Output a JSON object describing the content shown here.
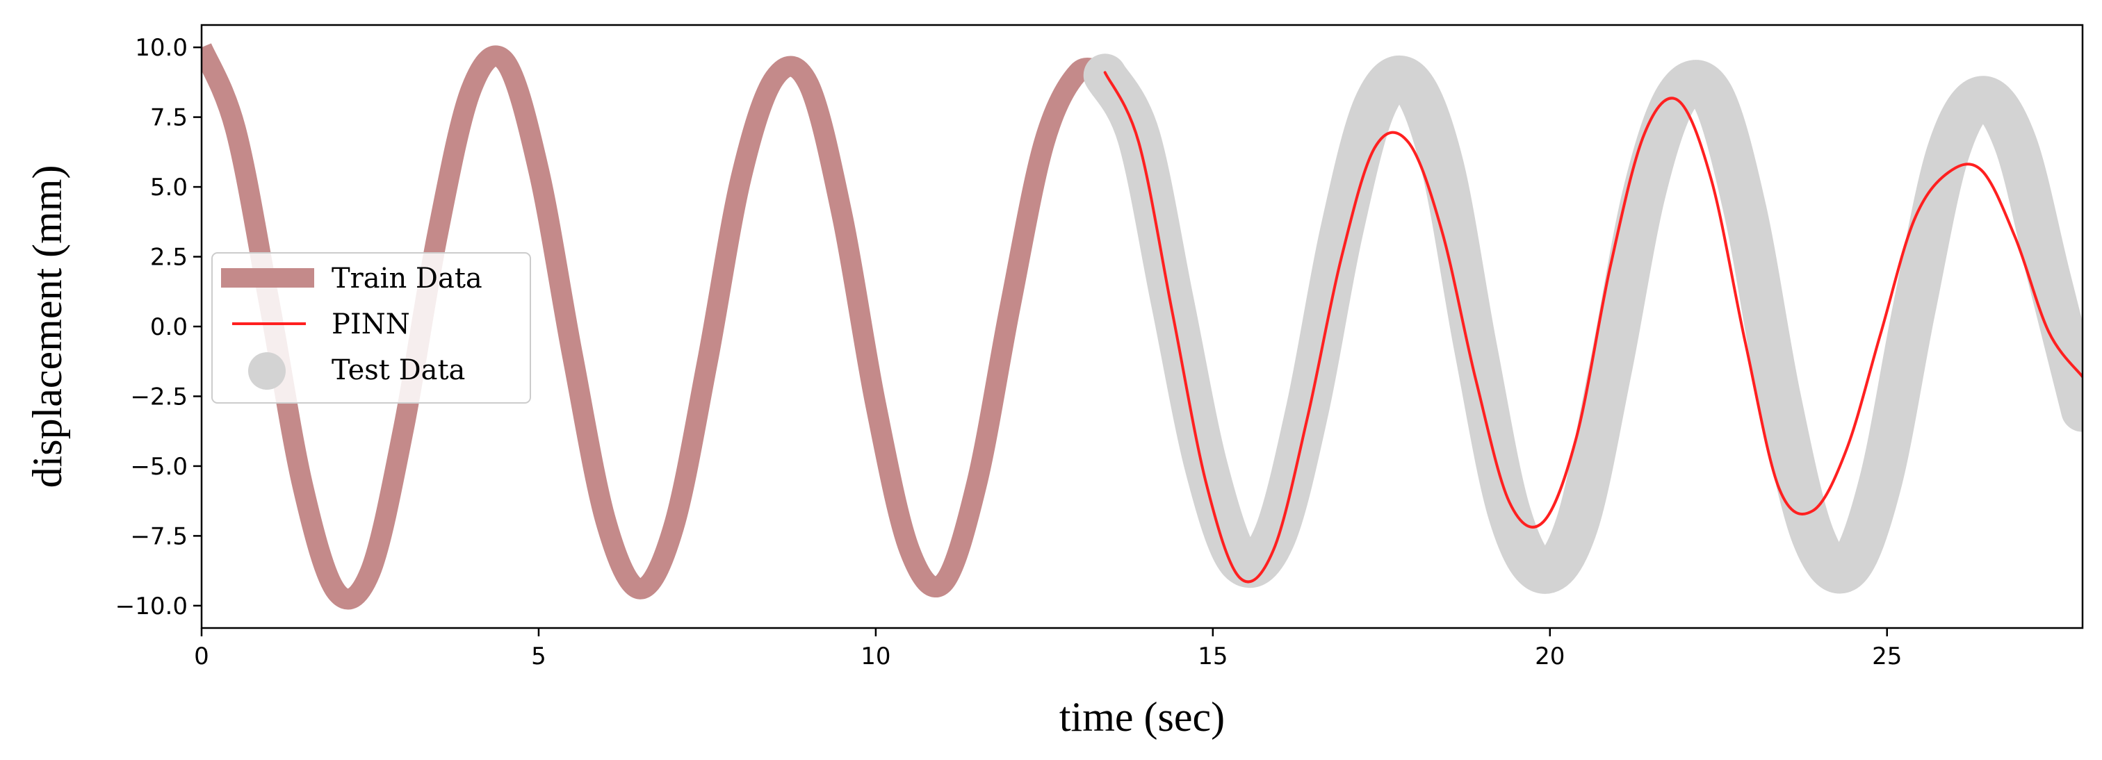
{
  "chart_data": {
    "type": "line",
    "xlabel": "time (sec)",
    "ylabel": "displacement (mm)",
    "xlim": [
      0,
      27.9
    ],
    "ylim": [
      -10.8,
      10.8
    ],
    "xticks": [
      0,
      5,
      10,
      15,
      20,
      25
    ],
    "yticks": [
      -10.0,
      -7.5,
      -5.0,
      -2.5,
      0.0,
      2.5,
      5.0,
      7.5,
      10.0
    ],
    "ytick_labels": [
      "−10.0",
      "−7.5",
      "−5.0",
      "−2.5",
      "0.0",
      "2.5",
      "5.0",
      "7.5",
      "10.0"
    ],
    "xtick_labels": [
      "0",
      "5",
      "10",
      "15",
      "20",
      "25"
    ],
    "grid": false,
    "legend_position": "center-left",
    "legend": [
      {
        "label": "Train Data",
        "color": "#c48a8a",
        "style": "thick-line"
      },
      {
        "label": "PINN",
        "color": "#ff2020",
        "style": "line"
      },
      {
        "label": "Test Data",
        "color": "#d3d3d3",
        "style": "marker"
      }
    ],
    "series": [
      {
        "name": "Train Data",
        "color": "#c48a8a",
        "x": [
          0,
          0.5,
          1.0,
          1.5,
          2.0,
          2.5,
          3.0,
          3.5,
          4.0,
          4.5,
          5.0,
          5.5,
          6.0,
          6.5,
          7.0,
          7.5,
          8.0,
          8.5,
          9.0,
          9.5,
          10.0,
          10.5,
          11.0,
          11.5,
          12.0,
          12.5,
          13.0,
          13.4
        ],
        "y": [
          10.0,
          7.1,
          0.9,
          -5.7,
          -9.5,
          -8.8,
          -3.6,
          3.3,
          8.5,
          9.5,
          5.6,
          -1.0,
          -7.0,
          -9.4,
          -7.2,
          -1.3,
          5.3,
          8.9,
          8.7,
          4.0,
          -2.8,
          -8.0,
          -9.2,
          -5.6,
          0.8,
          6.6,
          9.1,
          9.0
        ]
      },
      {
        "name": "Test Data",
        "color": "#d3d3d3",
        "x": [
          13.4,
          13.9,
          14.4,
          14.9,
          15.4,
          15.9,
          16.4,
          16.9,
          17.4,
          17.9,
          18.4,
          18.9,
          19.4,
          19.9,
          20.4,
          20.9,
          21.4,
          21.9,
          22.4,
          22.9,
          23.4,
          23.9,
          24.4,
          24.9,
          25.4,
          25.9,
          26.4,
          26.9,
          27.4,
          27.9
        ],
        "y": [
          9.0,
          6.8,
          0.9,
          -5.0,
          -8.4,
          -7.6,
          -3.0,
          3.3,
          7.9,
          8.8,
          5.8,
          -0.8,
          -6.7,
          -8.8,
          -7.1,
          -1.5,
          4.8,
          8.3,
          8.3,
          4.1,
          -2.5,
          -7.5,
          -8.7,
          -5.6,
          0.6,
          6.2,
          8.2,
          6.6,
          1.8,
          -3.0
        ]
      },
      {
        "name": "PINN",
        "color": "#ff2020",
        "x": [
          13.4,
          13.9,
          14.4,
          14.9,
          15.4,
          15.9,
          16.4,
          16.9,
          17.4,
          17.9,
          18.4,
          18.9,
          19.4,
          19.9,
          20.4,
          20.9,
          21.4,
          21.9,
          22.4,
          22.9,
          23.4,
          23.9,
          24.4,
          24.9,
          25.4,
          25.9,
          26.4,
          26.9,
          27.4,
          27.9
        ],
        "y": [
          9.1,
          6.6,
          0.5,
          -5.6,
          -9.0,
          -8.0,
          -3.3,
          2.4,
          6.4,
          6.6,
          3.4,
          -1.9,
          -6.3,
          -7.0,
          -3.9,
          2.2,
          6.9,
          8.1,
          5.2,
          -0.6,
          -5.8,
          -6.6,
          -4.4,
          -0.3,
          3.8,
          5.5,
          5.6,
          3.2,
          -0.2,
          -1.8
        ]
      }
    ]
  }
}
